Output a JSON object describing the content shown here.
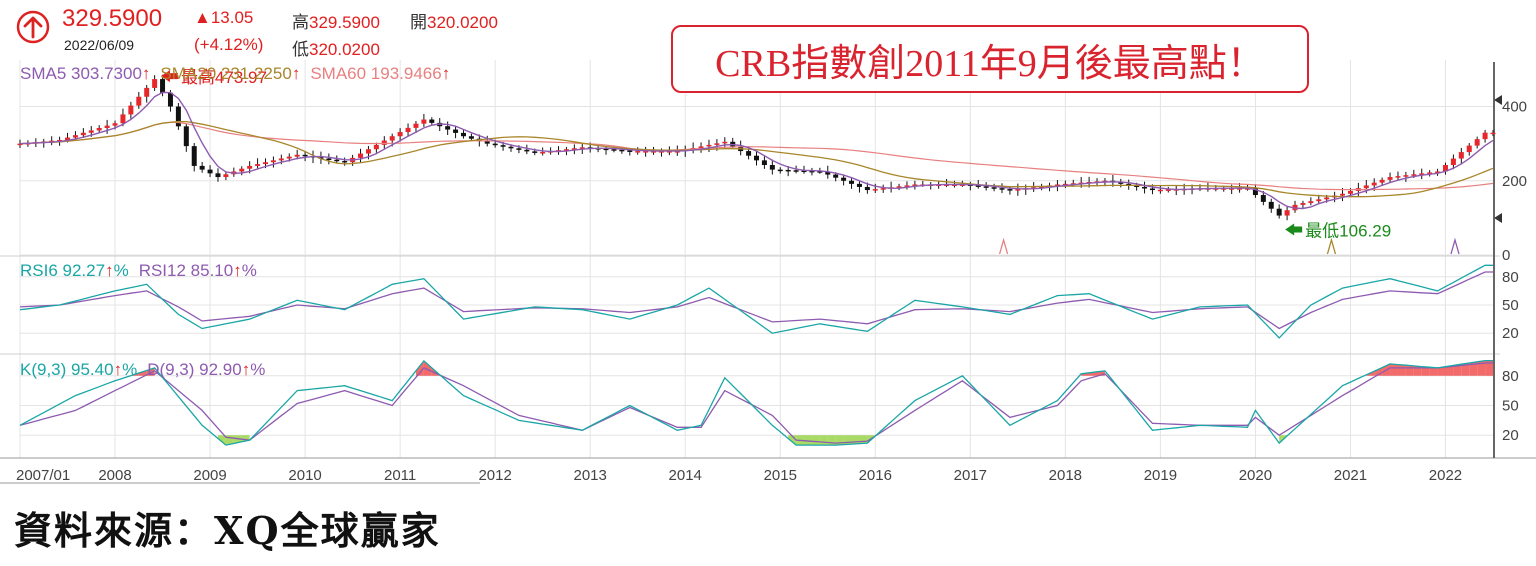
{
  "header": {
    "price": "329.5900",
    "date": "2022/06/09",
    "change": "▲13.05",
    "change_pct": "(+4.12%)",
    "high_label": "高",
    "high_value": "329.5900",
    "open_label": "開",
    "open_value": "320.0200",
    "low_label": "低",
    "low_value": "320.0200",
    "icon": "up-arrow-circle-icon"
  },
  "callout": "CRB指數創2011年9月後最高點！",
  "source": "資料來源：XQ全球贏家",
  "colors": {
    "up_candle": "#e8262b",
    "down_candle": "#111111",
    "sma5": "#8e5bb0",
    "sma20": "#a8862a",
    "sma60": "#e88080",
    "rsi6": "#1aa6a6",
    "rsi12": "#8e5bb0",
    "k": "#1aa6a6",
    "d": "#8e5bb0",
    "overbought_fill": "#f05050",
    "oversold_fill": "#9ad34a",
    "max_arrow": "#e02020",
    "min_arrow": "#1a8a1a"
  },
  "chart_data": [
    {
      "type": "candlestick",
      "name": "CRB monthly",
      "ylim": [
        0,
        520
      ],
      "y_ticks": [
        "400",
        "200",
        "0"
      ],
      "x_ticks": [
        "2007/01",
        "2008",
        "2009",
        "2010",
        "2011",
        "2012",
        "2013",
        "2014",
        "2015",
        "2016",
        "2017",
        "2018",
        "2019",
        "2020",
        "2021",
        "2022"
      ],
      "close_path": [
        [
          "2007-01",
          300
        ],
        [
          "2007-06",
          310
        ],
        [
          "2008-01",
          355
        ],
        [
          "2008-06",
          473.97
        ],
        [
          "2008-08",
          400
        ],
        [
          "2008-11",
          240
        ],
        [
          "2009-02",
          210
        ],
        [
          "2009-06",
          240
        ],
        [
          "2009-12",
          270
        ],
        [
          "2010-06",
          250
        ],
        [
          "2010-12",
          320
        ],
        [
          "2011-04",
          365
        ],
        [
          "2011-09",
          320
        ],
        [
          "2011-12",
          300
        ],
        [
          "2012-06",
          275
        ],
        [
          "2012-12",
          290
        ],
        [
          "2013-06",
          280
        ],
        [
          "2013-12",
          280
        ],
        [
          "2014-06",
          305
        ],
        [
          "2014-12",
          230
        ],
        [
          "2015-06",
          225
        ],
        [
          "2015-12",
          175
        ],
        [
          "2016-06",
          190
        ],
        [
          "2016-12",
          190
        ],
        [
          "2017-06",
          175
        ],
        [
          "2017-12",
          190
        ],
        [
          "2018-06",
          200
        ],
        [
          "2018-12",
          175
        ],
        [
          "2019-06",
          180
        ],
        [
          "2019-12",
          180
        ],
        [
          "2020-04",
          106.29
        ],
        [
          "2020-06",
          135
        ],
        [
          "2020-12",
          165
        ],
        [
          "2021-06",
          210
        ],
        [
          "2021-12",
          225
        ],
        [
          "2022-06",
          329.59
        ]
      ],
      "sma_legend": [
        {
          "name": "SMA5",
          "value": "303.7300"
        },
        {
          "name": "SMA20",
          "value": "231.2250"
        },
        {
          "name": "SMA60",
          "value": "193.9466"
        }
      ],
      "annotations": {
        "max_label": "最高473.97",
        "max_value": 473.97,
        "min_label": "最低106.29",
        "min_value": 106.29
      }
    },
    {
      "type": "line",
      "name": "RSI",
      "ylim": [
        0,
        100
      ],
      "y_ticks": [
        "80",
        "50",
        "20"
      ],
      "legend": [
        {
          "name": "RSI6",
          "value": "92.27",
          "unit": "%"
        },
        {
          "name": "RSI12",
          "value": "85.10",
          "unit": "%"
        }
      ],
      "rsi6": [
        [
          "2007-01",
          45
        ],
        [
          "2007-06",
          50
        ],
        [
          "2008-01",
          65
        ],
        [
          "2008-05",
          72
        ],
        [
          "2008-09",
          40
        ],
        [
          "2008-12",
          25
        ],
        [
          "2009-06",
          35
        ],
        [
          "2009-12",
          55
        ],
        [
          "2010-06",
          45
        ],
        [
          "2010-12",
          72
        ],
        [
          "2011-04",
          78
        ],
        [
          "2011-09",
          35
        ],
        [
          "2012-06",
          48
        ],
        [
          "2012-12",
          45
        ],
        [
          "2013-06",
          35
        ],
        [
          "2013-12",
          50
        ],
        [
          "2014-04",
          68
        ],
        [
          "2014-12",
          20
        ],
        [
          "2015-06",
          30
        ],
        [
          "2015-12",
          22
        ],
        [
          "2016-06",
          55
        ],
        [
          "2016-12",
          48
        ],
        [
          "2017-06",
          40
        ],
        [
          "2017-12",
          60
        ],
        [
          "2018-04",
          62
        ],
        [
          "2018-12",
          35
        ],
        [
          "2019-06",
          48
        ],
        [
          "2019-12",
          50
        ],
        [
          "2020-04",
          15
        ],
        [
          "2020-08",
          50
        ],
        [
          "2020-12",
          68
        ],
        [
          "2021-06",
          78
        ],
        [
          "2021-12",
          65
        ],
        [
          "2022-06",
          92.27
        ]
      ],
      "rsi12": [
        [
          "2007-01",
          48
        ],
        [
          "2007-06",
          50
        ],
        [
          "2008-01",
          60
        ],
        [
          "2008-05",
          65
        ],
        [
          "2008-09",
          48
        ],
        [
          "2008-12",
          33
        ],
        [
          "2009-06",
          38
        ],
        [
          "2009-12",
          50
        ],
        [
          "2010-06",
          46
        ],
        [
          "2010-12",
          62
        ],
        [
          "2011-04",
          68
        ],
        [
          "2011-09",
          43
        ],
        [
          "2012-06",
          47
        ],
        [
          "2012-12",
          46
        ],
        [
          "2013-06",
          42
        ],
        [
          "2013-12",
          48
        ],
        [
          "2014-04",
          58
        ],
        [
          "2014-12",
          32
        ],
        [
          "2015-06",
          35
        ],
        [
          "2015-12",
          30
        ],
        [
          "2016-06",
          45
        ],
        [
          "2016-12",
          46
        ],
        [
          "2017-06",
          43
        ],
        [
          "2017-12",
          52
        ],
        [
          "2018-04",
          56
        ],
        [
          "2018-12",
          42
        ],
        [
          "2019-06",
          46
        ],
        [
          "2019-12",
          48
        ],
        [
          "2020-04",
          25
        ],
        [
          "2020-08",
          42
        ],
        [
          "2020-12",
          56
        ],
        [
          "2021-06",
          65
        ],
        [
          "2021-12",
          62
        ],
        [
          "2022-06",
          85.1
        ]
      ]
    },
    {
      "type": "line",
      "name": "KD",
      "ylim": [
        0,
        100
      ],
      "y_ticks": [
        "80",
        "50",
        "20"
      ],
      "legend": [
        {
          "name": "K(9,3)",
          "value": "95.40",
          "unit": "%"
        },
        {
          "name": "D(9,3)",
          "value": "92.90",
          "unit": "%"
        }
      ],
      "k": [
        [
          "2007-01",
          30
        ],
        [
          "2007-08",
          60
        ],
        [
          "2008-01",
          75
        ],
        [
          "2008-06",
          88
        ],
        [
          "2008-12",
          30
        ],
        [
          "2009-03",
          10
        ],
        [
          "2009-06",
          15
        ],
        [
          "2009-12",
          65
        ],
        [
          "2010-06",
          70
        ],
        [
          "2010-12",
          55
        ],
        [
          "2011-04",
          95
        ],
        [
          "2011-09",
          60
        ],
        [
          "2012-04",
          35
        ],
        [
          "2012-12",
          25
        ],
        [
          "2013-06",
          50
        ],
        [
          "2013-12",
          25
        ],
        [
          "2014-03",
          30
        ],
        [
          "2014-06",
          78
        ],
        [
          "2014-12",
          30
        ],
        [
          "2015-03",
          10
        ],
        [
          "2015-08",
          10
        ],
        [
          "2015-12",
          12
        ],
        [
          "2016-06",
          55
        ],
        [
          "2016-12",
          80
        ],
        [
          "2017-06",
          30
        ],
        [
          "2017-12",
          55
        ],
        [
          "2018-03",
          82
        ],
        [
          "2018-06",
          85
        ],
        [
          "2018-12",
          25
        ],
        [
          "2019-06",
          30
        ],
        [
          "2019-12",
          28
        ],
        [
          "2020-01",
          45
        ],
        [
          "2020-04",
          12
        ],
        [
          "2020-12",
          70
        ],
        [
          "2021-06",
          92
        ],
        [
          "2021-12",
          88
        ],
        [
          "2022-06",
          95.4
        ]
      ],
      "d": [
        [
          "2007-01",
          30
        ],
        [
          "2007-08",
          45
        ],
        [
          "2008-01",
          65
        ],
        [
          "2008-06",
          85
        ],
        [
          "2008-12",
          45
        ],
        [
          "2009-03",
          18
        ],
        [
          "2009-06",
          15
        ],
        [
          "2009-12",
          52
        ],
        [
          "2010-06",
          65
        ],
        [
          "2010-12",
          50
        ],
        [
          "2011-04",
          88
        ],
        [
          "2011-09",
          70
        ],
        [
          "2012-04",
          40
        ],
        [
          "2012-12",
          25
        ],
        [
          "2013-06",
          48
        ],
        [
          "2013-12",
          28
        ],
        [
          "2014-03",
          28
        ],
        [
          "2014-06",
          65
        ],
        [
          "2014-12",
          40
        ],
        [
          "2015-03",
          15
        ],
        [
          "2015-08",
          12
        ],
        [
          "2015-12",
          14
        ],
        [
          "2016-06",
          45
        ],
        [
          "2016-12",
          75
        ],
        [
          "2017-06",
          38
        ],
        [
          "2017-12",
          50
        ],
        [
          "2018-03",
          75
        ],
        [
          "2018-06",
          82
        ],
        [
          "2018-12",
          32
        ],
        [
          "2019-06",
          30
        ],
        [
          "2019-12",
          30
        ],
        [
          "2020-01",
          38
        ],
        [
          "2020-04",
          20
        ],
        [
          "2020-12",
          60
        ],
        [
          "2021-06",
          88
        ],
        [
          "2021-12",
          88
        ],
        [
          "2022-06",
          92.9
        ]
      ]
    }
  ]
}
